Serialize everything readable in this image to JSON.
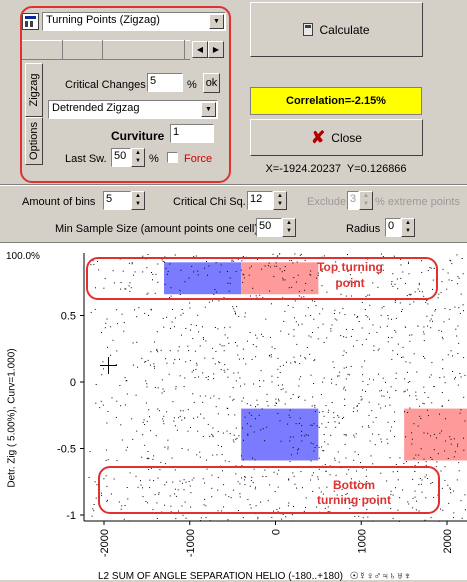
{
  "panel": {
    "method_select": "Turning Points (Zigzag)",
    "tabs": [
      "Zigzag",
      "Options"
    ],
    "critical_changes_label": "Critical Changes",
    "critical_changes_value": "5",
    "percent": "%",
    "ok_label": "ok",
    "trend_select": "Detrended Zigzag",
    "curviture_label": "Curviture",
    "curviture_value": "1",
    "last_sw_label": "Last Sw.",
    "last_sw_value": "50",
    "force_label": "Force"
  },
  "actions": {
    "calculate_label": "Calculate",
    "correlation_text": "Correlation=-2.15%",
    "close_label": "Close",
    "coords_text": "X=-1924.20237  Y=0.126866"
  },
  "options": {
    "amount_of_bins_label": "Amount of bins",
    "amount_of_bins_value": "5",
    "critical_chi_label": "Critical Chi Sq.",
    "critical_chi_value": "12",
    "exclude_label": "Exclude",
    "exclude_value": "3",
    "extreme_points_label": "% extreme points",
    "min_sample_label": "Min Sample Size (amount points one cell)",
    "min_sample_value": "50",
    "radius_label": "Radius",
    "radius_value": "0"
  },
  "chart": {
    "top_corner_label": "100.0%",
    "y_axis_label": "Detr. Zig ( 5.00%), Curv=1.000)",
    "x_axis_label": "L2  SUM OF ANGLE SEPARATION HELIO (-180..+180)",
    "x_axis_symbols": "☉☿♀♂♃♄♅♆",
    "annotation_top": "Top turning point",
    "annotation_bottom": "Bottom turning point",
    "colors": {
      "blue_cell": "#7b7bff",
      "red_cell": "#ff9a9a",
      "annotation": "#e03030"
    }
  },
  "chart_data": {
    "type": "scatter",
    "x_ticks": [
      "-2000",
      "-1000",
      "0",
      "1000",
      "2000"
    ],
    "y_ticks": [
      "0.5",
      "0",
      "-0.5",
      "-1"
    ],
    "xlim": [
      -2400,
      2350
    ],
    "ylim": [
      -1.0,
      1.0
    ],
    "highlight_cells": [
      {
        "color": "blue",
        "x": [
          -1300,
          -400
        ],
        "y": [
          0.66,
          0.9
        ]
      },
      {
        "color": "red",
        "x": [
          -400,
          500
        ],
        "y": [
          0.66,
          0.9
        ]
      },
      {
        "color": "blue",
        "x": [
          -400,
          500
        ],
        "y": [
          -0.59,
          -0.2
        ]
      },
      {
        "color": "red",
        "x": [
          1500,
          2400
        ],
        "y": [
          -0.59,
          -0.2
        ]
      }
    ]
  }
}
